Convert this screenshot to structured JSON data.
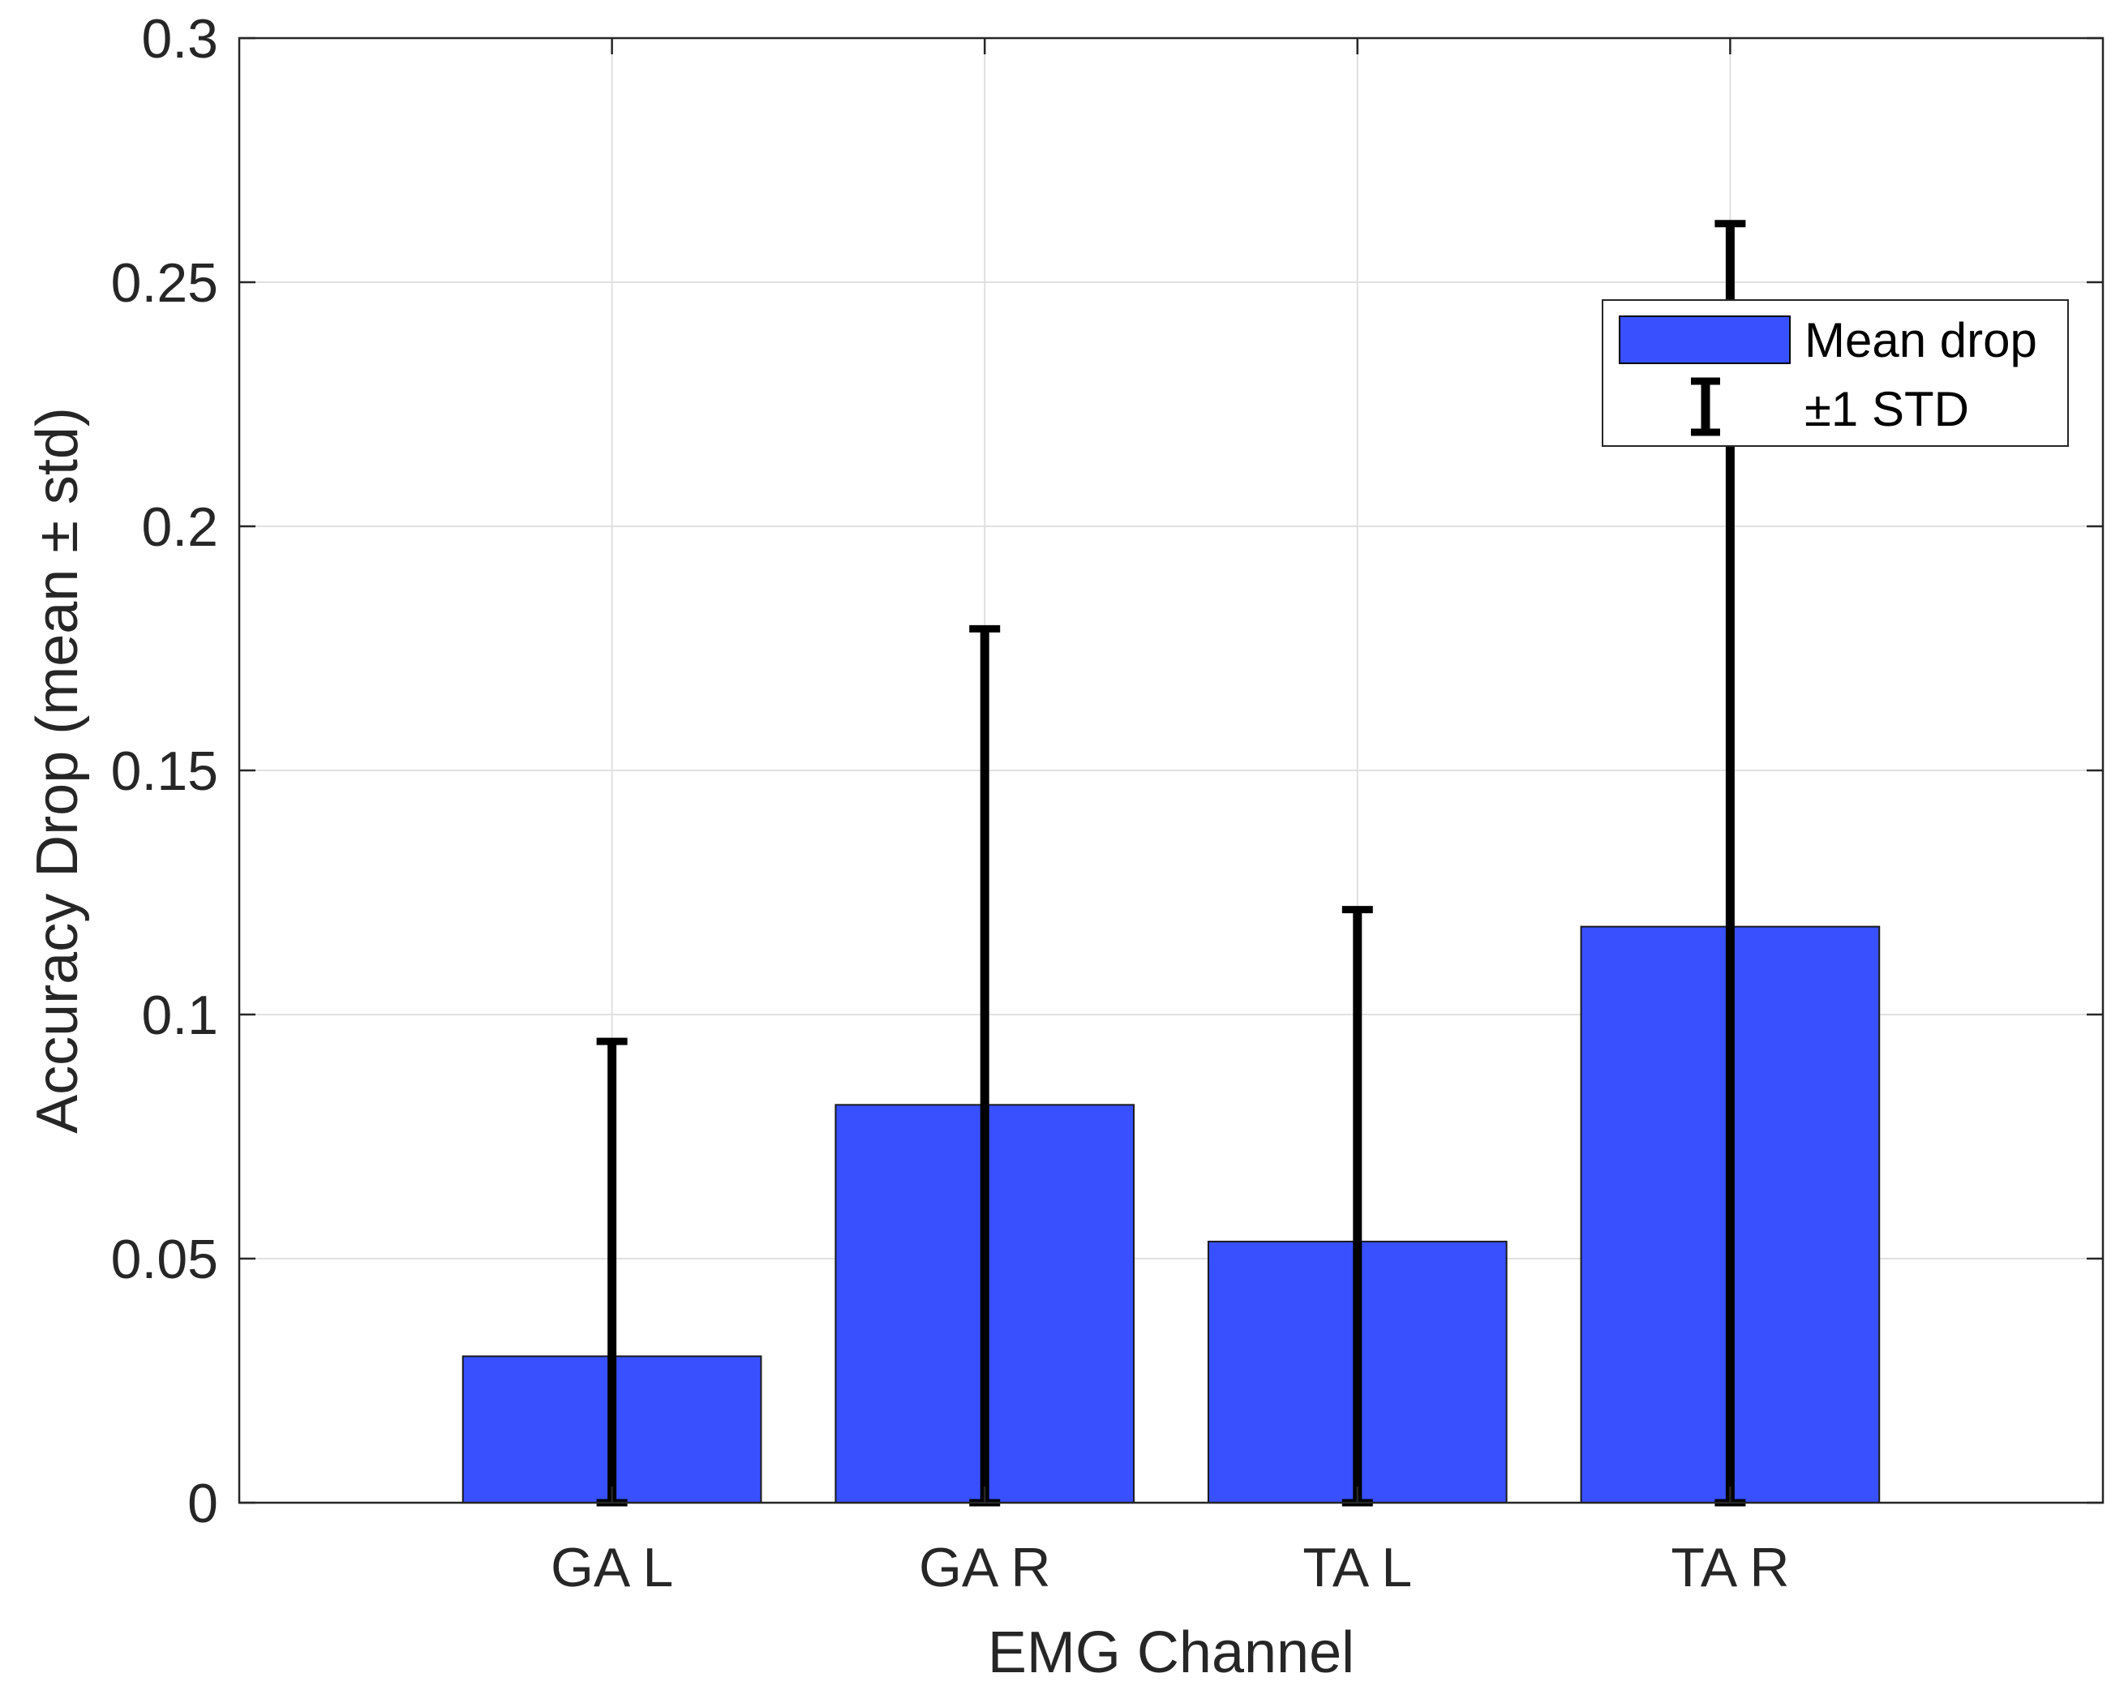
{
  "chart_data": {
    "type": "bar",
    "title": "",
    "xlabel": "EMG Channel",
    "ylabel": "Accuracy Drop (mean ± std)",
    "categories": [
      "GA L",
      "GA R",
      "TA L",
      "TA R"
    ],
    "series": [
      {
        "name": "Mean drop",
        "values": [
          0.03,
          0.0815,
          0.0535,
          0.118
        ],
        "error_upper": [
          0.0645,
          0.0975,
          0.068,
          0.144
        ],
        "error_lower": [
          0.03,
          0.0815,
          0.0535,
          0.118
        ]
      }
    ],
    "error_label": "±1 STD",
    "ylim": [
      0,
      0.3
    ],
    "yticks": [
      0,
      0.05,
      0.1,
      0.15,
      0.2,
      0.25,
      0.3
    ],
    "ytick_labels": [
      "0",
      "0.05",
      "0.1",
      "0.15",
      "0.2",
      "0.25",
      "0.3"
    ],
    "xlim": [
      0,
      5
    ],
    "grid": true,
    "legend_position": "top-right",
    "colors": {
      "bar": "#3850ff",
      "error": "#000000",
      "grid": "#e0e0e0",
      "axis": "#262626"
    }
  }
}
